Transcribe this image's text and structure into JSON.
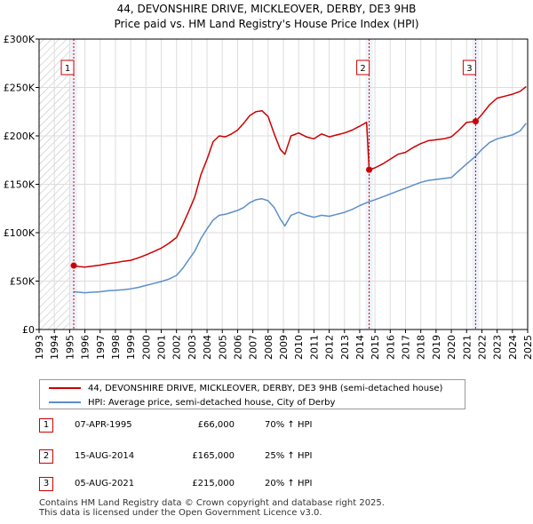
{
  "chart_data": {
    "type": "line",
    "title": "44, DEVONSHIRE DRIVE, MICKLEOVER, DERBY, DE3 9HB",
    "subtitle": "Price paid vs. HM Land Registry's House Price Index (HPI)",
    "xlim": [
      1993,
      2025
    ],
    "ylim": [
      0,
      300000
    ],
    "x_ticks": [
      "1993",
      "1994",
      "1995",
      "1996",
      "1997",
      "1998",
      "1999",
      "2000",
      "2001",
      "2002",
      "2003",
      "2004",
      "2005",
      "2006",
      "2007",
      "2008",
      "2009",
      "2010",
      "2011",
      "2012",
      "2013",
      "2014",
      "2015",
      "2016",
      "2017",
      "2018",
      "2019",
      "2020",
      "2021",
      "2022",
      "2023",
      "2024",
      "2025"
    ],
    "y_ticks": [
      {
        "value": 0,
        "label": "£0"
      },
      {
        "value": 50000,
        "label": "£50K"
      },
      {
        "value": 100000,
        "label": "£100K"
      },
      {
        "value": 150000,
        "label": "£150K"
      },
      {
        "value": 200000,
        "label": "£200K"
      },
      {
        "value": 250000,
        "label": "£250K"
      },
      {
        "value": 300000,
        "label": "£300K"
      }
    ],
    "series": [
      {
        "name": "44, DEVONSHIRE DRIVE, MICKLEOVER, DERBY, DE3 9HB (semi-detached house)",
        "color": "#cc0000",
        "points": [
          [
            1995.27,
            66000
          ],
          [
            1995.6,
            65000
          ],
          [
            1996,
            64500
          ],
          [
            1996.5,
            65500
          ],
          [
            1997,
            66500
          ],
          [
            1997.5,
            68000
          ],
          [
            1998,
            69000
          ],
          [
            1998.5,
            70500
          ],
          [
            1999,
            71500
          ],
          [
            1999.5,
            74000
          ],
          [
            2000,
            77000
          ],
          [
            2000.5,
            80500
          ],
          [
            2001,
            84000
          ],
          [
            2001.5,
            89000
          ],
          [
            2002,
            95000
          ],
          [
            2002.4,
            108000
          ],
          [
            2002.8,
            122000
          ],
          [
            2003.2,
            137000
          ],
          [
            2003.6,
            160000
          ],
          [
            2004,
            176000
          ],
          [
            2004.4,
            194000
          ],
          [
            2004.8,
            200000
          ],
          [
            2005.2,
            199000
          ],
          [
            2005.6,
            202000
          ],
          [
            2006,
            206000
          ],
          [
            2006.4,
            213000
          ],
          [
            2006.8,
            221000
          ],
          [
            2007.2,
            225000
          ],
          [
            2007.6,
            226000
          ],
          [
            2008,
            220000
          ],
          [
            2008.4,
            202000
          ],
          [
            2008.8,
            186000
          ],
          [
            2009.1,
            181000
          ],
          [
            2009.5,
            200000
          ],
          [
            2010,
            203000
          ],
          [
            2010.5,
            199000
          ],
          [
            2011,
            197000
          ],
          [
            2011.5,
            202000
          ],
          [
            2012,
            199000
          ],
          [
            2012.5,
            201000
          ],
          [
            2013,
            203000
          ],
          [
            2013.5,
            206000
          ],
          [
            2014,
            210000
          ],
          [
            2014.45,
            214000
          ],
          [
            2014.62,
            165000
          ],
          [
            2015,
            167000
          ],
          [
            2015.5,
            171000
          ],
          [
            2016,
            176000
          ],
          [
            2016.5,
            181000
          ],
          [
            2017,
            183000
          ],
          [
            2017.5,
            188000
          ],
          [
            2018,
            192000
          ],
          [
            2018.5,
            195000
          ],
          [
            2019,
            196000
          ],
          [
            2019.5,
            197000
          ],
          [
            2020,
            199000
          ],
          [
            2020.5,
            206000
          ],
          [
            2021,
            214000
          ],
          [
            2021.59,
            215000
          ],
          [
            2022,
            222000
          ],
          [
            2022.5,
            232000
          ],
          [
            2023,
            239000
          ],
          [
            2023.5,
            241000
          ],
          [
            2024,
            243000
          ],
          [
            2024.5,
            246000
          ],
          [
            2024.9,
            251000
          ]
        ]
      },
      {
        "name": "HPI: Average price, semi-detached house, City of Derby",
        "color": "#5b8fc9",
        "points": [
          [
            1995.27,
            39000
          ],
          [
            1995.6,
            38500
          ],
          [
            1996,
            38000
          ],
          [
            1996.5,
            38500
          ],
          [
            1997,
            39000
          ],
          [
            1997.5,
            40000
          ],
          [
            1998,
            40500
          ],
          [
            1998.5,
            41000
          ],
          [
            1999,
            42000
          ],
          [
            1999.5,
            43500
          ],
          [
            2000,
            45500
          ],
          [
            2000.5,
            47500
          ],
          [
            2001,
            49500
          ],
          [
            2001.5,
            52000
          ],
          [
            2002,
            56000
          ],
          [
            2002.4,
            63000
          ],
          [
            2002.8,
            72000
          ],
          [
            2003.2,
            81000
          ],
          [
            2003.6,
            94000
          ],
          [
            2004,
            104000
          ],
          [
            2004.4,
            113000
          ],
          [
            2004.8,
            118000
          ],
          [
            2005.2,
            119000
          ],
          [
            2005.6,
            121000
          ],
          [
            2006,
            123000
          ],
          [
            2006.4,
            126000
          ],
          [
            2006.8,
            131000
          ],
          [
            2007.2,
            134000
          ],
          [
            2007.6,
            135000
          ],
          [
            2008,
            133000
          ],
          [
            2008.4,
            126000
          ],
          [
            2008.8,
            114000
          ],
          [
            2009.1,
            107000
          ],
          [
            2009.5,
            118000
          ],
          [
            2010,
            121000
          ],
          [
            2010.5,
            118000
          ],
          [
            2011,
            116000
          ],
          [
            2011.5,
            118000
          ],
          [
            2012,
            117000
          ],
          [
            2012.5,
            119000
          ],
          [
            2013,
            121000
          ],
          [
            2013.5,
            124000
          ],
          [
            2014,
            128000
          ],
          [
            2014.62,
            132000
          ],
          [
            2015,
            134000
          ],
          [
            2015.5,
            137000
          ],
          [
            2016,
            140000
          ],
          [
            2016.5,
            143000
          ],
          [
            2017,
            146000
          ],
          [
            2017.5,
            149000
          ],
          [
            2018,
            152000
          ],
          [
            2018.5,
            154000
          ],
          [
            2019,
            155000
          ],
          [
            2019.5,
            156000
          ],
          [
            2020,
            157000
          ],
          [
            2020.5,
            164000
          ],
          [
            2021,
            171000
          ],
          [
            2021.59,
            179000
          ],
          [
            2022,
            186000
          ],
          [
            2022.5,
            193000
          ],
          [
            2023,
            197000
          ],
          [
            2023.5,
            199000
          ],
          [
            2024,
            201000
          ],
          [
            2024.5,
            205000
          ],
          [
            2024.9,
            213000
          ]
        ]
      }
    ],
    "hatch_before": 1995.0,
    "sale_markers": [
      {
        "label": "1",
        "x": 1995.27,
        "y": 66000
      },
      {
        "label": "2",
        "x": 2014.62,
        "y": 165000
      },
      {
        "label": "3",
        "x": 2021.59,
        "y": 215000
      }
    ]
  },
  "legend": [
    {
      "label": "44, DEVONSHIRE DRIVE, MICKLEOVER, DERBY, DE3 9HB (semi-detached house)",
      "color": "#cc0000"
    },
    {
      "label": "HPI: Average price, semi-detached house, City of Derby",
      "color": "#5b8fc9"
    }
  ],
  "sales": [
    {
      "num": "1",
      "date": "07-APR-1995",
      "price": "£66,000",
      "hpi": "70% ↑ HPI"
    },
    {
      "num": "2",
      "date": "15-AUG-2014",
      "price": "£165,000",
      "hpi": "25% ↑ HPI"
    },
    {
      "num": "3",
      "date": "05-AUG-2021",
      "price": "£215,000",
      "hpi": "20% ↑ HPI"
    }
  ],
  "footer": {
    "line1": "Contains HM Land Registry data © Crown copyright and database right 2025.",
    "line2": "This data is licensed under the Open Government Licence v3.0."
  }
}
